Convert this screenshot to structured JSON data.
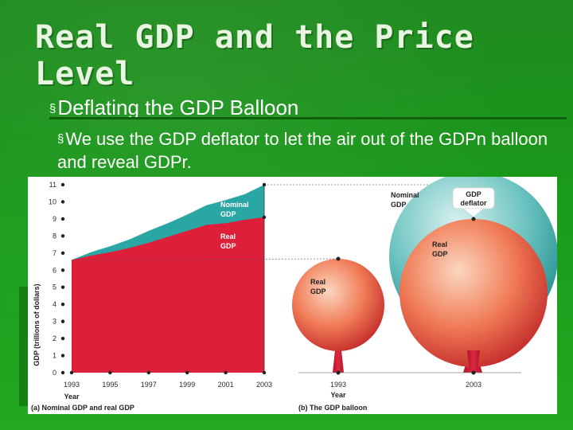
{
  "slide": {
    "title": "Real GDP and the Price Level",
    "bullet1": "Deflating the GDP Balloon",
    "bullet2": "We use the GDP deflator to let the air out of the GDPn balloon and reveal GDPr.",
    "bullet_symbol": "§"
  },
  "figure": {
    "panel_a_caption": "(a) Nominal GDP and real GDP",
    "panel_b_caption": "(b) The GDP balloon",
    "panel_b_year_label": "Year",
    "balloon_small_label": [
      "Real",
      "GDP"
    ],
    "balloon_big_nominal_label": [
      "Nominal",
      "GDP"
    ],
    "balloon_big_real_label": [
      "Real",
      "GDP"
    ],
    "deflator_label": [
      "GDP",
      "deflator"
    ],
    "balloon_years": [
      "1993",
      "2003"
    ]
  },
  "chart_data": {
    "type": "area",
    "title": "",
    "xlabel": "Year",
    "ylabel": "GDP (trillions of dollars)",
    "x_ticks": [
      "1993",
      "1995",
      "1997",
      "1999",
      "2001",
      "2003"
    ],
    "y_ticks": [
      0,
      1,
      2,
      3,
      4,
      5,
      6,
      7,
      8,
      9,
      10,
      11
    ],
    "ylim": [
      0,
      11
    ],
    "xlim": [
      1993,
      2003
    ],
    "x": [
      1993,
      1994,
      1995,
      1996,
      1997,
      1998,
      1999,
      2000,
      2001,
      2002,
      2003
    ],
    "series": [
      {
        "name": "Nominal GDP",
        "color": "#2aa7a5",
        "labels": [
          "Nominal",
          "GDP"
        ],
        "values": [
          6.6,
          7.05,
          7.4,
          7.8,
          8.3,
          8.75,
          9.25,
          9.8,
          10.1,
          10.45,
          11.0
        ]
      },
      {
        "name": "Real GDP",
        "color": "#dd1f3a",
        "labels": [
          "Real",
          "GDP"
        ],
        "values": [
          6.6,
          6.85,
          7.05,
          7.3,
          7.6,
          7.95,
          8.3,
          8.65,
          8.75,
          8.95,
          9.1
        ]
      }
    ]
  }
}
